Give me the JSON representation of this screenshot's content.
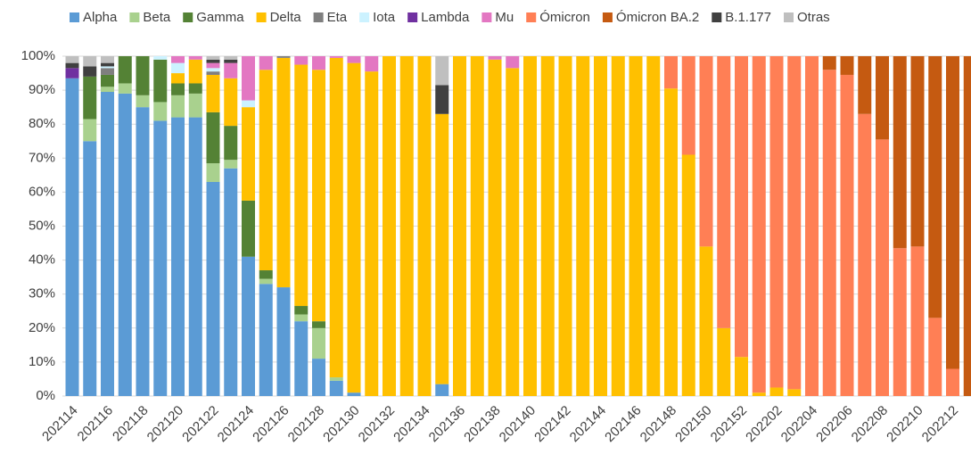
{
  "chart_data": {
    "type": "stacked_bar",
    "categories": [
      "202114",
      null,
      "202116",
      null,
      "202118",
      null,
      "202120",
      null,
      "202122",
      null,
      "202124",
      null,
      "202126",
      null,
      "202128",
      null,
      "202130",
      null,
      "202132",
      null,
      "202134",
      null,
      "202136",
      null,
      "202138",
      null,
      "202140",
      null,
      "202142",
      null,
      "202144",
      null,
      "202146",
      null,
      "202148",
      null,
      "202150",
      null,
      "202152",
      null,
      "202202",
      null,
      "202204",
      null,
      "202206",
      null,
      "202208",
      null,
      "202210",
      null,
      "202212",
      null
    ],
    "series": [
      {
        "name": "Alpha",
        "color": "#5b9bd5",
        "values": [
          93.5,
          75,
          89.5,
          89,
          85,
          81,
          82,
          82,
          63,
          67,
          41,
          33,
          32,
          22,
          11,
          4.5,
          1,
          0,
          0,
          0,
          0,
          3.5,
          0,
          0,
          0,
          0,
          0,
          0,
          0,
          0,
          0,
          0,
          0,
          0,
          0,
          0,
          0,
          0,
          0,
          0,
          0,
          0,
          0,
          0,
          0,
          0,
          0,
          0,
          0,
          0,
          0,
          0
        ]
      },
      {
        "name": "Beta",
        "color": "#a9d18e",
        "values": [
          0,
          6.5,
          1.5,
          3,
          3.5,
          5.5,
          6.5,
          7,
          5.5,
          2.5,
          0,
          1.5,
          0,
          2,
          9,
          1,
          0,
          0,
          0,
          0,
          0,
          0,
          0,
          0,
          0,
          0,
          0,
          0,
          0,
          0,
          0,
          0,
          0,
          0,
          0,
          0,
          0,
          0,
          0,
          0,
          0,
          0,
          0,
          0,
          0,
          0,
          0,
          0,
          0,
          0,
          0,
          0
        ]
      },
      {
        "name": "Gamma",
        "color": "#548235",
        "values": [
          0,
          12.5,
          3.5,
          8,
          11.5,
          12.5,
          3.5,
          3,
          15,
          10,
          16.5,
          2.5,
          0,
          2.5,
          2,
          0,
          0,
          0,
          0,
          0,
          0,
          0,
          0,
          0,
          0,
          0,
          0,
          0,
          0,
          0,
          0,
          0,
          0,
          0,
          0,
          0,
          0,
          0,
          0,
          0,
          0,
          0,
          0,
          0,
          0,
          0,
          0,
          0,
          0,
          0,
          0,
          0
        ]
      },
      {
        "name": "Delta",
        "color": "#ffc000",
        "values": [
          0,
          0,
          0,
          0,
          0,
          0,
          3,
          7,
          11,
          14,
          27.5,
          59,
          67.5,
          71,
          74,
          94,
          97,
          95.5,
          100,
          100,
          100,
          79.5,
          100,
          100,
          99,
          96.5,
          100,
          100,
          100,
          100,
          100,
          100,
          100,
          100,
          90.5,
          71,
          44,
          20,
          11.5,
          1,
          2.5,
          2,
          0,
          0,
          0,
          0,
          0,
          0,
          0,
          0,
          0,
          0
        ]
      },
      {
        "name": "Eta",
        "color": "#7f7f7f",
        "values": [
          0,
          0,
          2,
          0,
          0,
          0,
          0,
          0,
          1,
          0,
          0,
          0,
          0.5,
          0,
          0,
          0,
          0,
          0,
          0,
          0,
          0,
          0,
          0,
          0,
          0,
          0,
          0,
          0,
          0,
          0,
          0,
          0,
          0,
          0,
          0,
          0,
          0,
          0,
          0,
          0,
          0,
          0,
          0,
          0,
          0,
          0,
          0,
          0,
          0,
          0,
          0,
          0
        ]
      },
      {
        "name": "Iota",
        "color": "#ccf2ff",
        "values": [
          0,
          0,
          0.5,
          0,
          0,
          1,
          3,
          0,
          1,
          0,
          2,
          0,
          0,
          0,
          0,
          0,
          0,
          0,
          0,
          0,
          0,
          0,
          0,
          0,
          0,
          0,
          0,
          0,
          0,
          0,
          0,
          0,
          0,
          0,
          0,
          0,
          0,
          0,
          0,
          0,
          0,
          0,
          0,
          0,
          0,
          0,
          0,
          0,
          0,
          0,
          0,
          0
        ]
      },
      {
        "name": "Lambda",
        "color": "#7030a0",
        "values": [
          3,
          0,
          0,
          0,
          0,
          0,
          0,
          0,
          0,
          0,
          0,
          0,
          0,
          0,
          0,
          0,
          0,
          0,
          0,
          0,
          0,
          0,
          0,
          0,
          0,
          0,
          0,
          0,
          0,
          0,
          0,
          0,
          0,
          0,
          0,
          0,
          0,
          0,
          0,
          0,
          0,
          0,
          0,
          0,
          0,
          0,
          0,
          0,
          0,
          0,
          0,
          0
        ]
      },
      {
        "name": "Mu",
        "color": "#e377c2",
        "values": [
          0,
          0,
          0,
          0,
          0,
          0,
          2,
          1,
          1.5,
          4.5,
          13,
          4,
          0,
          2.5,
          4,
          0.5,
          2,
          4.5,
          0,
          0,
          0,
          0,
          0,
          0,
          1,
          3.5,
          0,
          0,
          0,
          0,
          0,
          0,
          0,
          0,
          0,
          0,
          0,
          0,
          0,
          0,
          0,
          0,
          0,
          0,
          0,
          0,
          0,
          0,
          0,
          0,
          0,
          0
        ]
      },
      {
        "name": "Ómicron",
        "color": "#ff7f55",
        "values": [
          0,
          0,
          0,
          0,
          0,
          0,
          0,
          0,
          0,
          0,
          0,
          0,
          0,
          0,
          0,
          0,
          0,
          0,
          0,
          0,
          0,
          0,
          0,
          0,
          0,
          0,
          0,
          0,
          0,
          0,
          0,
          0,
          0,
          0,
          9.5,
          29,
          56,
          80,
          88.5,
          99,
          97.5,
          98,
          100,
          96,
          94.5,
          83,
          75.5,
          43.5,
          44,
          23,
          8,
          0
        ]
      },
      {
        "name": "Ómicron BA.2",
        "color": "#c55a11",
        "values": [
          0,
          0,
          0,
          0,
          0,
          0,
          0,
          0,
          0,
          0,
          0,
          0,
          0,
          0,
          0,
          0,
          0,
          0,
          0,
          0,
          0,
          0,
          0,
          0,
          0,
          0,
          0,
          0,
          0,
          0,
          0,
          0,
          0,
          0,
          0,
          0,
          0,
          0,
          0,
          0,
          0,
          0,
          0,
          4,
          5.5,
          17,
          24.5,
          56.5,
          56,
          77,
          92,
          100
        ]
      },
      {
        "name": "B.1.177",
        "color": "#404040",
        "values": [
          1.5,
          3,
          1,
          0,
          0,
          0,
          0,
          0,
          1,
          1,
          0,
          0,
          0,
          0,
          0,
          0,
          0,
          0,
          0,
          0,
          0,
          8.5,
          0,
          0,
          0,
          0,
          0,
          0,
          0,
          0,
          0,
          0,
          0,
          0,
          0,
          0,
          0,
          0,
          0,
          0,
          0,
          0,
          0,
          0,
          0,
          0,
          0,
          0,
          0,
          0,
          0,
          0
        ]
      },
      {
        "name": "Otras",
        "color": "#bfbfbf",
        "values": [
          2,
          3,
          2,
          0,
          0,
          0,
          0,
          0,
          1,
          1,
          0,
          0,
          0,
          0,
          0,
          0,
          0,
          0,
          0,
          0,
          0,
          8.5,
          0,
          0,
          0,
          0,
          0,
          0,
          0,
          0,
          0,
          0,
          0,
          0,
          0,
          0,
          0,
          0,
          0,
          0,
          0,
          0,
          0,
          0,
          0,
          0,
          0,
          0,
          0,
          0,
          0,
          0
        ]
      }
    ],
    "ylim": [
      0,
      100
    ],
    "yticks": [
      {
        "value": 0,
        "label": "0%"
      },
      {
        "value": 10,
        "label": "10%"
      },
      {
        "value": 20,
        "label": "20%"
      },
      {
        "value": 30,
        "label": "30%"
      },
      {
        "value": 40,
        "label": "40%"
      },
      {
        "value": 50,
        "label": "50%"
      },
      {
        "value": 60,
        "label": "60%"
      },
      {
        "value": 70,
        "label": "70%"
      },
      {
        "value": 80,
        "label": "80%"
      },
      {
        "value": 90,
        "label": "90%"
      },
      {
        "value": 100,
        "label": "100%"
      }
    ],
    "grid": true,
    "legend": "top"
  }
}
